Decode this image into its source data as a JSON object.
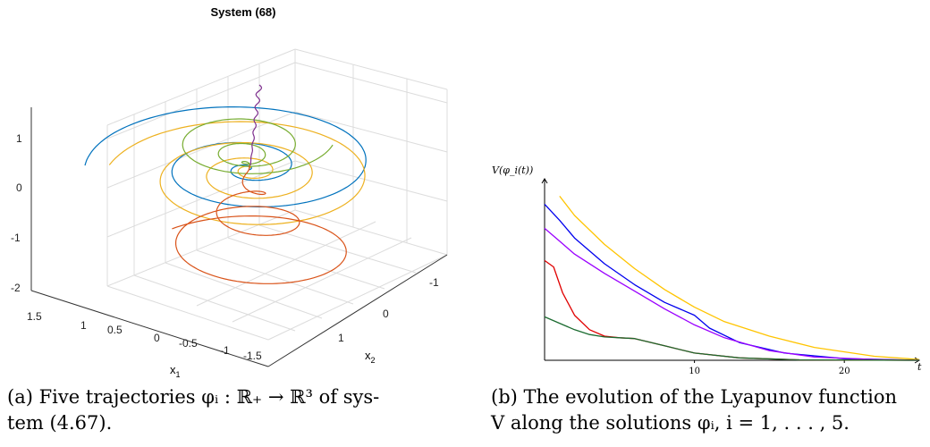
{
  "chart_data": [
    {
      "type": "line",
      "projection": "3d",
      "title": "System (68)",
      "xlabel": "x_1",
      "ylabel": "x_2",
      "zlabel": "",
      "x_ticks": [
        "1.5",
        "1",
        "0.5",
        "0",
        "-0.5",
        "-1",
        "-1.5"
      ],
      "y_ticks": [
        "-1",
        "0",
        "1"
      ],
      "z_ticks": [
        "1",
        "0",
        "-1",
        "-2"
      ],
      "grid": true,
      "series": [
        {
          "color": "#0072BD",
          "shape": "outer spiral converging to origin"
        },
        {
          "color": "#EDB120",
          "shape": "spiral converging to origin"
        },
        {
          "color": "#77AC30",
          "shape": "spiral converging to origin"
        },
        {
          "color": "#D95319",
          "shape": "spiral converging to origin"
        },
        {
          "color": "#7E2F8E",
          "shape": "nearly vertical trajectory to origin"
        }
      ]
    },
    {
      "type": "line",
      "ylabel": "V(φ_i(t))",
      "xlabel": "t",
      "x_ticks": [
        10,
        20
      ],
      "xlim": [
        0,
        25
      ],
      "series": [
        {
          "color": "#ffc400",
          "x": [
            1,
            2,
            4,
            6,
            8,
            10,
            12,
            15,
            18,
            22,
            25
          ],
          "y": [
            10.2,
            9.0,
            7.2,
            5.7,
            4.4,
            3.3,
            2.4,
            1.5,
            0.8,
            0.25,
            0.05
          ]
        },
        {
          "color": "#0000ee",
          "x": [
            0,
            1,
            2,
            4,
            6,
            8,
            10,
            11,
            13,
            16,
            20,
            25
          ],
          "y": [
            9.7,
            8.7,
            7.6,
            6.0,
            4.7,
            3.6,
            2.8,
            2.0,
            1.1,
            0.45,
            0.1,
            0.0
          ]
        },
        {
          "color": "#9a00ff",
          "x": [
            0,
            1,
            2,
            4,
            6,
            8,
            10,
            12,
            15,
            18,
            22,
            25
          ],
          "y": [
            8.2,
            7.4,
            6.6,
            5.4,
            4.3,
            3.2,
            2.2,
            1.4,
            0.6,
            0.2,
            0.05,
            0.0
          ]
        },
        {
          "color": "#e00000",
          "x": [
            0,
            0.6,
            1.2,
            2,
            3,
            4,
            5,
            6,
            8,
            10,
            13,
            17,
            25
          ],
          "y": [
            6.2,
            5.8,
            4.2,
            2.8,
            1.9,
            1.5,
            1.4,
            1.35,
            0.9,
            0.45,
            0.15,
            0.03,
            0.0
          ]
        },
        {
          "color": "#1b6b30",
          "x": [
            0,
            1,
            2,
            3,
            4,
            5,
            6,
            8,
            10,
            13,
            17,
            25
          ],
          "y": [
            2.7,
            2.3,
            1.9,
            1.6,
            1.45,
            1.4,
            1.35,
            0.9,
            0.45,
            0.15,
            0.03,
            0.0
          ]
        }
      ]
    }
  ],
  "captions": {
    "a_line1": "(a) Five trajectories φᵢ : ℝ₊ → ℝ³ of sys-",
    "a_line2": "tem (4.67).",
    "b_line1": "(b) The evolution of the Lyapunov function",
    "b_line2": "V along the solutions φᵢ, i = 1, . . . , 5."
  }
}
